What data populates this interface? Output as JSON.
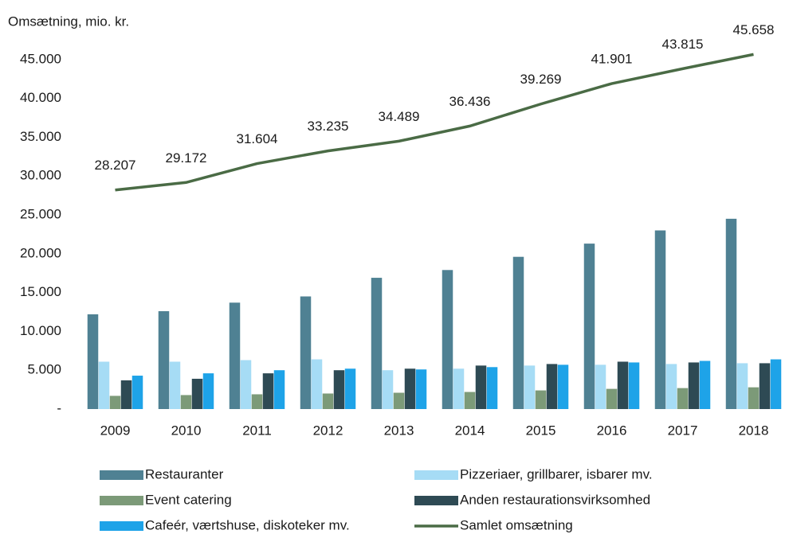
{
  "chart_data": {
    "type": "bar",
    "title": "Omsætning, mio. kr.",
    "categories": [
      "2009",
      "2010",
      "2011",
      "2012",
      "2013",
      "2014",
      "2015",
      "2016",
      "2017",
      "2018"
    ],
    "series": [
      {
        "name": "Restauranter",
        "color": "#4f8193",
        "values": [
          12200,
          12600,
          13700,
          14500,
          16900,
          17900,
          19600,
          21300,
          23000,
          24500
        ]
      },
      {
        "name": "Pizzeriaer, grillbarer, isbarer mv.",
        "color": "#a6dcf5",
        "values": [
          6100,
          6100,
          6300,
          6400,
          5000,
          5200,
          5600,
          5700,
          5800,
          5900
        ]
      },
      {
        "name": "Event catering",
        "color": "#7c9a78",
        "values": [
          1700,
          1800,
          1900,
          2000,
          2100,
          2200,
          2400,
          2600,
          2700,
          2800
        ]
      },
      {
        "name": "Anden restaurationsvirksomhed",
        "color": "#2e4a54",
        "values": [
          3700,
          3900,
          4600,
          5000,
          5200,
          5600,
          5800,
          6100,
          6000,
          5900
        ]
      },
      {
        "name": "Cafeér, værtshuse, diskoteker mv.",
        "color": "#1ea3e8",
        "values": [
          4300,
          4600,
          5000,
          5200,
          5100,
          5400,
          5700,
          6000,
          6200,
          6400
        ]
      },
      {
        "name": "Samlet omsætning",
        "color": "#4a6b45",
        "type": "line",
        "values": [
          28207,
          29172,
          31604,
          33235,
          34489,
          36436,
          39269,
          41901,
          43815,
          45658
        ],
        "value_labels": [
          "28.207",
          "29.172",
          "31.604",
          "33.235",
          "34.489",
          "36.436",
          "39.269",
          "41.901",
          "43.815",
          "45.658"
        ]
      }
    ],
    "ylim": [
      0,
      50000
    ],
    "yticks": [
      {
        "value": 0,
        "label": "-"
      },
      {
        "value": 5000,
        "label": "5.000"
      },
      {
        "value": 10000,
        "label": "10.000"
      },
      {
        "value": 15000,
        "label": "15.000"
      },
      {
        "value": 20000,
        "label": "20.000"
      },
      {
        "value": 25000,
        "label": "25.000"
      },
      {
        "value": 30000,
        "label": "30.000"
      },
      {
        "value": 35000,
        "label": "35.000"
      },
      {
        "value": 40000,
        "label": "40.000"
      },
      {
        "value": 45000,
        "label": "45.000"
      }
    ],
    "grid": false
  }
}
